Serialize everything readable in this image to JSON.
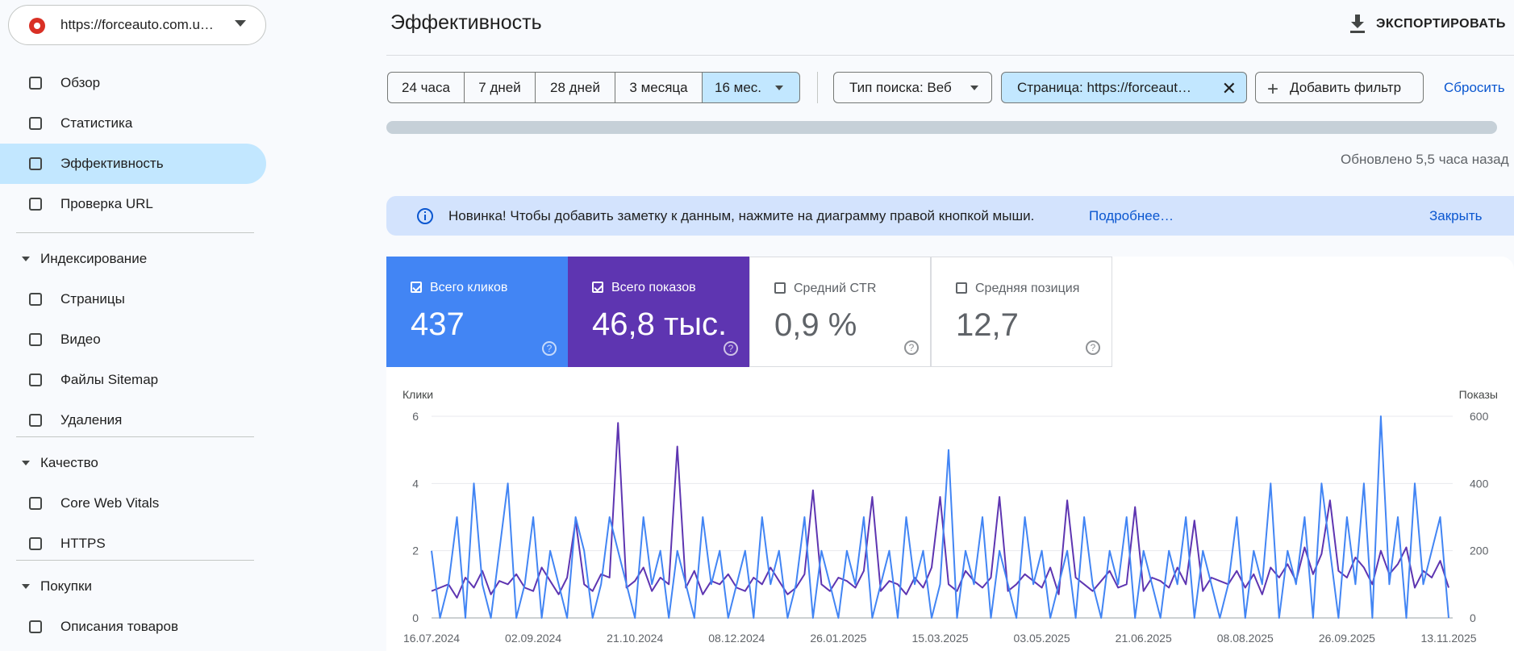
{
  "site": "https://forceauto.com.u…",
  "nav": {
    "items": [
      "Обзор",
      "Статистика",
      "Эффективность",
      "Проверка URL"
    ],
    "active": 2,
    "sections": [
      {
        "title": "Индексирование",
        "items": [
          "Страницы",
          "Видео",
          "Файлы Sitemap",
          "Удаления"
        ]
      },
      {
        "title": "Качество",
        "items": [
          "Core Web Vitals",
          "HTTPS"
        ]
      },
      {
        "title": "Покупки",
        "items": [
          "Описания товаров"
        ]
      }
    ]
  },
  "header": {
    "title": "Эффективность",
    "export": "ЭКСПОРТИРОВАТЬ"
  },
  "filters": {
    "date_ranges": [
      "24 часа",
      "7 дней",
      "28 дней",
      "3 месяца",
      "16 мес."
    ],
    "selected_range": 4,
    "search_type": "Тип поиска: Веб",
    "page_filter": "Страница: https://forceaut…",
    "add_filter": "Добавить фильтр",
    "reset": "Сбросить"
  },
  "updated": "Обновлено 5,5 часа назад",
  "banner": {
    "text": "Новинка! Чтобы добавить заметку к данным, нажмите на диаграмму правой кнопкой мыши.",
    "link": "Подробнее…",
    "close": "Закрыть"
  },
  "metrics": [
    {
      "value": "437",
      "checked": true
    },
    {
      "value": "46,8 тыс.",
      "checked": true
    },
    {
      "label": "Средний CTR",
      "value": "0,9 %",
      "checked": false
    },
    {
      "label": "Средняя позиция",
      "value": "12,7",
      "checked": false
    }
  ],
  "chart_data": {
    "type": "line",
    "y_label": "Клики",
    "y2_label": "Показы",
    "categories": [
      "16.07.2024",
      null,
      null,
      null,
      null,
      null,
      null,
      null,
      null,
      null,
      null,
      null,
      "02.09.2024",
      null,
      null,
      null,
      null,
      null,
      null,
      null,
      null,
      null,
      null,
      null,
      "21.10.2024",
      null,
      null,
      null,
      null,
      null,
      null,
      null,
      null,
      null,
      null,
      null,
      "08.12.2024",
      null,
      null,
      null,
      null,
      null,
      null,
      null,
      null,
      null,
      null,
      null,
      "26.01.2025",
      null,
      null,
      null,
      null,
      null,
      null,
      null,
      null,
      null,
      null,
      null,
      "15.03.2025",
      null,
      null,
      null,
      null,
      null,
      null,
      null,
      null,
      null,
      null,
      null,
      "03.05.2025",
      null,
      null,
      null,
      null,
      null,
      null,
      null,
      null,
      null,
      null,
      null,
      "21.06.2025",
      null,
      null,
      null,
      null,
      null,
      null,
      null,
      null,
      null,
      null,
      null,
      "08.08.2025",
      null,
      null,
      null,
      null,
      null,
      null,
      null,
      null,
      null,
      null,
      null,
      "26.09.2025",
      null,
      null,
      null,
      null,
      null,
      null,
      null,
      null,
      null,
      null,
      null,
      "13.11.2025"
    ],
    "series": [
      {
        "name": "Всего кликов",
        "color": "#4285f4",
        "values": [
          2,
          0,
          1,
          3,
          0,
          4,
          1,
          0,
          2,
          4,
          0,
          1,
          3,
          0,
          2,
          1,
          0,
          3,
          2,
          0,
          1,
          3,
          2,
          1,
          0,
          3,
          1,
          2,
          0,
          2,
          1,
          0,
          3,
          1,
          2,
          0,
          1,
          2,
          0,
          3,
          1,
          2,
          0,
          1,
          3,
          0,
          2,
          1,
          0,
          2,
          1,
          3,
          0,
          1,
          2,
          0,
          3,
          1,
          2,
          0,
          1,
          5,
          0,
          2,
          1,
          3,
          0,
          2,
          1,
          0,
          3,
          1,
          2,
          0,
          1,
          2,
          0,
          3,
          1,
          0,
          2,
          1,
          3,
          0,
          2,
          1,
          0,
          2,
          1,
          3,
          0,
          2,
          1,
          0,
          1,
          3,
          0,
          2,
          1,
          4,
          0,
          2,
          1,
          3,
          0,
          4,
          2,
          0,
          3,
          1,
          4,
          0,
          6,
          1,
          3,
          0,
          4,
          1,
          2,
          3,
          0
        ]
      },
      {
        "name": "Всего показов",
        "color": "#5e35b1",
        "axis": "y2",
        "values": [
          80,
          90,
          100,
          60,
          120,
          90,
          140,
          70,
          110,
          100,
          130,
          90,
          80,
          150,
          110,
          70,
          120,
          290,
          100,
          80,
          130,
          120,
          580,
          90,
          110,
          150,
          80,
          120,
          100,
          510,
          90,
          140,
          70,
          110,
          100,
          130,
          90,
          80,
          120,
          100,
          150,
          110,
          70,
          90,
          130,
          380,
          100,
          80,
          120,
          110,
          90,
          140,
          360,
          80,
          110,
          100,
          70,
          120,
          90,
          150,
          360,
          100,
          80,
          140,
          110,
          90,
          120,
          360,
          80,
          100,
          130,
          110,
          90,
          150,
          70,
          350,
          120,
          100,
          80,
          110,
          140,
          90,
          100,
          330,
          80,
          120,
          110,
          90,
          150,
          100,
          290,
          80,
          120,
          110,
          100,
          140,
          90,
          130,
          70,
          150,
          120,
          160,
          110,
          210,
          130,
          190,
          350,
          140,
          120,
          180,
          150,
          100,
          200,
          130,
          160,
          210,
          90,
          140,
          120,
          170,
          90
        ]
      }
    ],
    "ylim": [
      0,
      6
    ],
    "yticks": [
      0,
      2,
      4,
      6
    ],
    "y2lim": [
      0,
      600
    ],
    "y2ticks": [
      0,
      200,
      400,
      600
    ],
    "grid": true
  }
}
